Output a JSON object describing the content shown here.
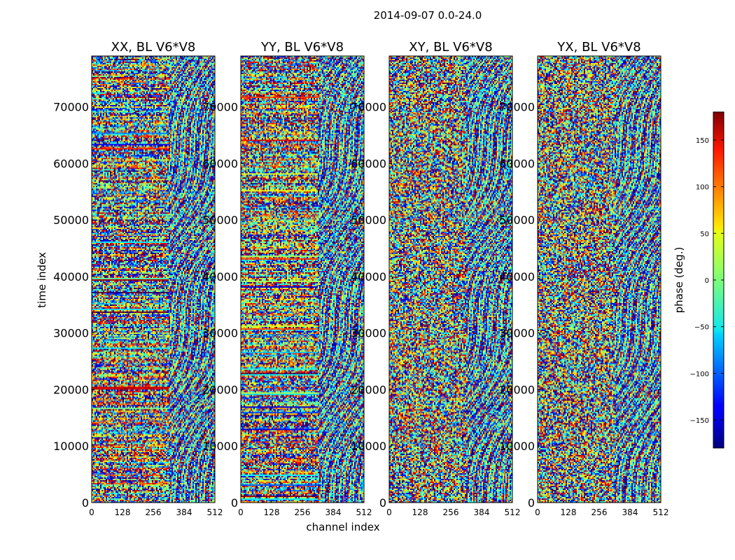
{
  "figure": {
    "suptitle": "2014-09-07 0.0-24.0"
  },
  "chart_data": [
    {
      "type": "heatmap",
      "title": "XX, BL V6*V8",
      "xlabel": "channel index",
      "ylabel": "time index",
      "xlim": [
        0,
        512
      ],
      "ylim": [
        0,
        79000
      ],
      "xticks": [
        0,
        128,
        256,
        384,
        512
      ],
      "yticks": [
        0,
        10000,
        20000,
        30000,
        40000,
        50000,
        60000,
        70000
      ],
      "colormap": "jet",
      "zlim": [
        -180,
        180
      ]
    },
    {
      "type": "heatmap",
      "title": "YY, BL V6*V8",
      "xlabel": "channel index",
      "ylabel": "",
      "xlim": [
        0,
        512
      ],
      "ylim": [
        0,
        79000
      ],
      "xticks": [
        0,
        128,
        256,
        384,
        512
      ],
      "yticks": [
        0,
        10000,
        20000,
        30000,
        40000,
        50000,
        60000,
        70000
      ],
      "colormap": "jet",
      "zlim": [
        -180,
        180
      ]
    },
    {
      "type": "heatmap",
      "title": "XY, BL V6*V8",
      "xlabel": "channel index",
      "ylabel": "",
      "xlim": [
        0,
        512
      ],
      "ylim": [
        0,
        79000
      ],
      "xticks": [
        0,
        128,
        256,
        384,
        512
      ],
      "yticks": [
        0,
        10000,
        20000,
        30000,
        40000,
        50000,
        60000,
        70000
      ],
      "colormap": "jet",
      "zlim": [
        -180,
        180
      ]
    },
    {
      "type": "heatmap",
      "title": "YX, BL V6*V8",
      "xlabel": "channel index",
      "ylabel": "",
      "xlim": [
        0,
        512
      ],
      "ylim": [
        0,
        79000
      ],
      "xticks": [
        0,
        128,
        256,
        384,
        512
      ],
      "yticks": [
        0,
        10000,
        20000,
        30000,
        40000,
        50000,
        60000,
        70000
      ],
      "colormap": "jet",
      "zlim": [
        -180,
        180
      ]
    }
  ],
  "colorbar": {
    "label": "phase (deg.)",
    "range": [
      -180,
      180
    ],
    "ticks": [
      -150,
      -100,
      -50,
      0,
      50,
      100,
      150
    ],
    "tick_labels": [
      "−150",
      "−100",
      "−50",
      "0",
      "50",
      "100",
      "150"
    ]
  },
  "shared": {
    "xlabel": "channel index",
    "ylabel": "time index"
  }
}
